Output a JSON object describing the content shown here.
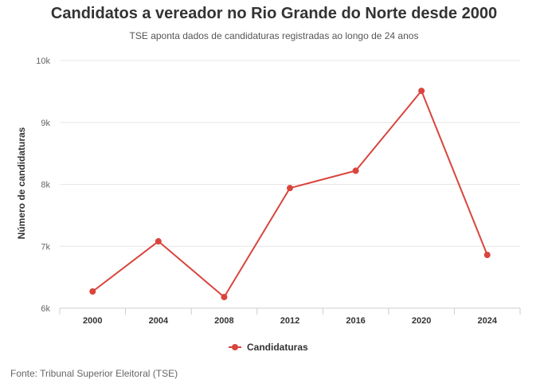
{
  "chart_data": {
    "type": "line",
    "title": "Candidatos a vereador no Rio Grande do Norte desde 2000",
    "subtitle": "TSE aponta dados de candidaturas registradas ao longo de 24 anos",
    "xlabel": "",
    "ylabel": "Número de candidaturas",
    "categories": [
      "2000",
      "2004",
      "2008",
      "2012",
      "2016",
      "2020",
      "2024"
    ],
    "series": [
      {
        "name": "Candidaturas",
        "color": "#d9453d",
        "values": [
          6270,
          7080,
          6180,
          7940,
          8220,
          9510,
          6860
        ]
      }
    ],
    "ylim": [
      6000,
      10000
    ],
    "yticks": [
      6000,
      7000,
      8000,
      9000,
      10000
    ],
    "ytick_labels": [
      "6k",
      "7k",
      "8k",
      "9k",
      "10k"
    ],
    "grid": true,
    "legend_position": "bottom-center"
  },
  "footer": {
    "source": "Fonte: Tribunal Superior Eleitoral (TSE)"
  }
}
